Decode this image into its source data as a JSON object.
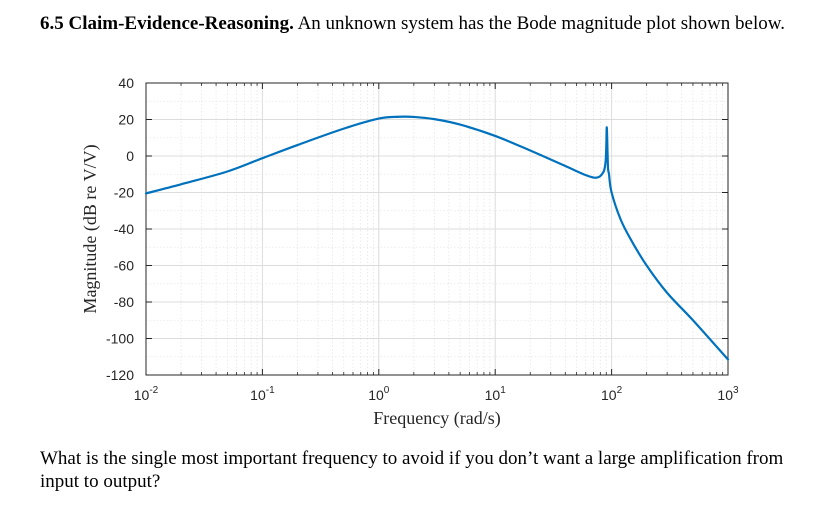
{
  "problem": {
    "title": "6.5 Claim-Evidence-Reasoning.",
    "intro": "An unknown system has the Bode magnitude plot shown below.",
    "question": "What is the single most important frequency to avoid if you don’t want a large amplification from input to output?"
  },
  "chart_data": {
    "type": "line",
    "xlabel": "Frequency (rad/s)",
    "ylabel": "Magnitude (dB re V/V)",
    "x_scale": "log",
    "xlim": [
      0.01,
      1000
    ],
    "ylim": [
      -120,
      40
    ],
    "xticks": [
      0.01,
      0.1,
      1,
      10,
      100,
      1000
    ],
    "xtick_labels": [
      {
        "base": "10",
        "exp": "-2"
      },
      {
        "base": "10",
        "exp": "-1"
      },
      {
        "base": "10",
        "exp": "0"
      },
      {
        "base": "10",
        "exp": "1"
      },
      {
        "base": "10",
        "exp": "2"
      },
      {
        "base": "10",
        "exp": "3"
      }
    ],
    "yticks": [
      40,
      20,
      0,
      -20,
      -40,
      -60,
      -80,
      -100,
      -120
    ],
    "ytick_labels": [
      "40",
      "20",
      "0",
      "-20",
      "-40",
      "-60",
      "-80",
      "-100",
      "-120"
    ],
    "grid": true,
    "minor_grid": true,
    "line_color": "#0072BD",
    "series": [
      {
        "x": [
          0.01,
          0.02,
          0.05,
          0.1,
          0.2,
          0.5,
          1.0,
          1.5,
          2.0,
          3.0,
          5.0,
          10,
          20,
          40,
          60,
          70,
          75,
          80,
          85,
          87,
          89,
          90,
          91,
          93,
          95,
          100,
          120,
          150,
          200,
          300,
          500,
          1000
        ],
        "y": [
          -20.5,
          -15.5,
          -8.5,
          -1.2,
          6,
          15,
          20.5,
          21.5,
          21.4,
          20.2,
          17.2,
          11,
          3,
          -5.5,
          -10.5,
          -11.8,
          -11.8,
          -11,
          -8.8,
          -7,
          -2.5,
          5,
          15.5,
          -5.5,
          -10,
          -20,
          -35,
          -47,
          -60,
          -75,
          -90,
          -111.5
        ]
      }
    ]
  }
}
